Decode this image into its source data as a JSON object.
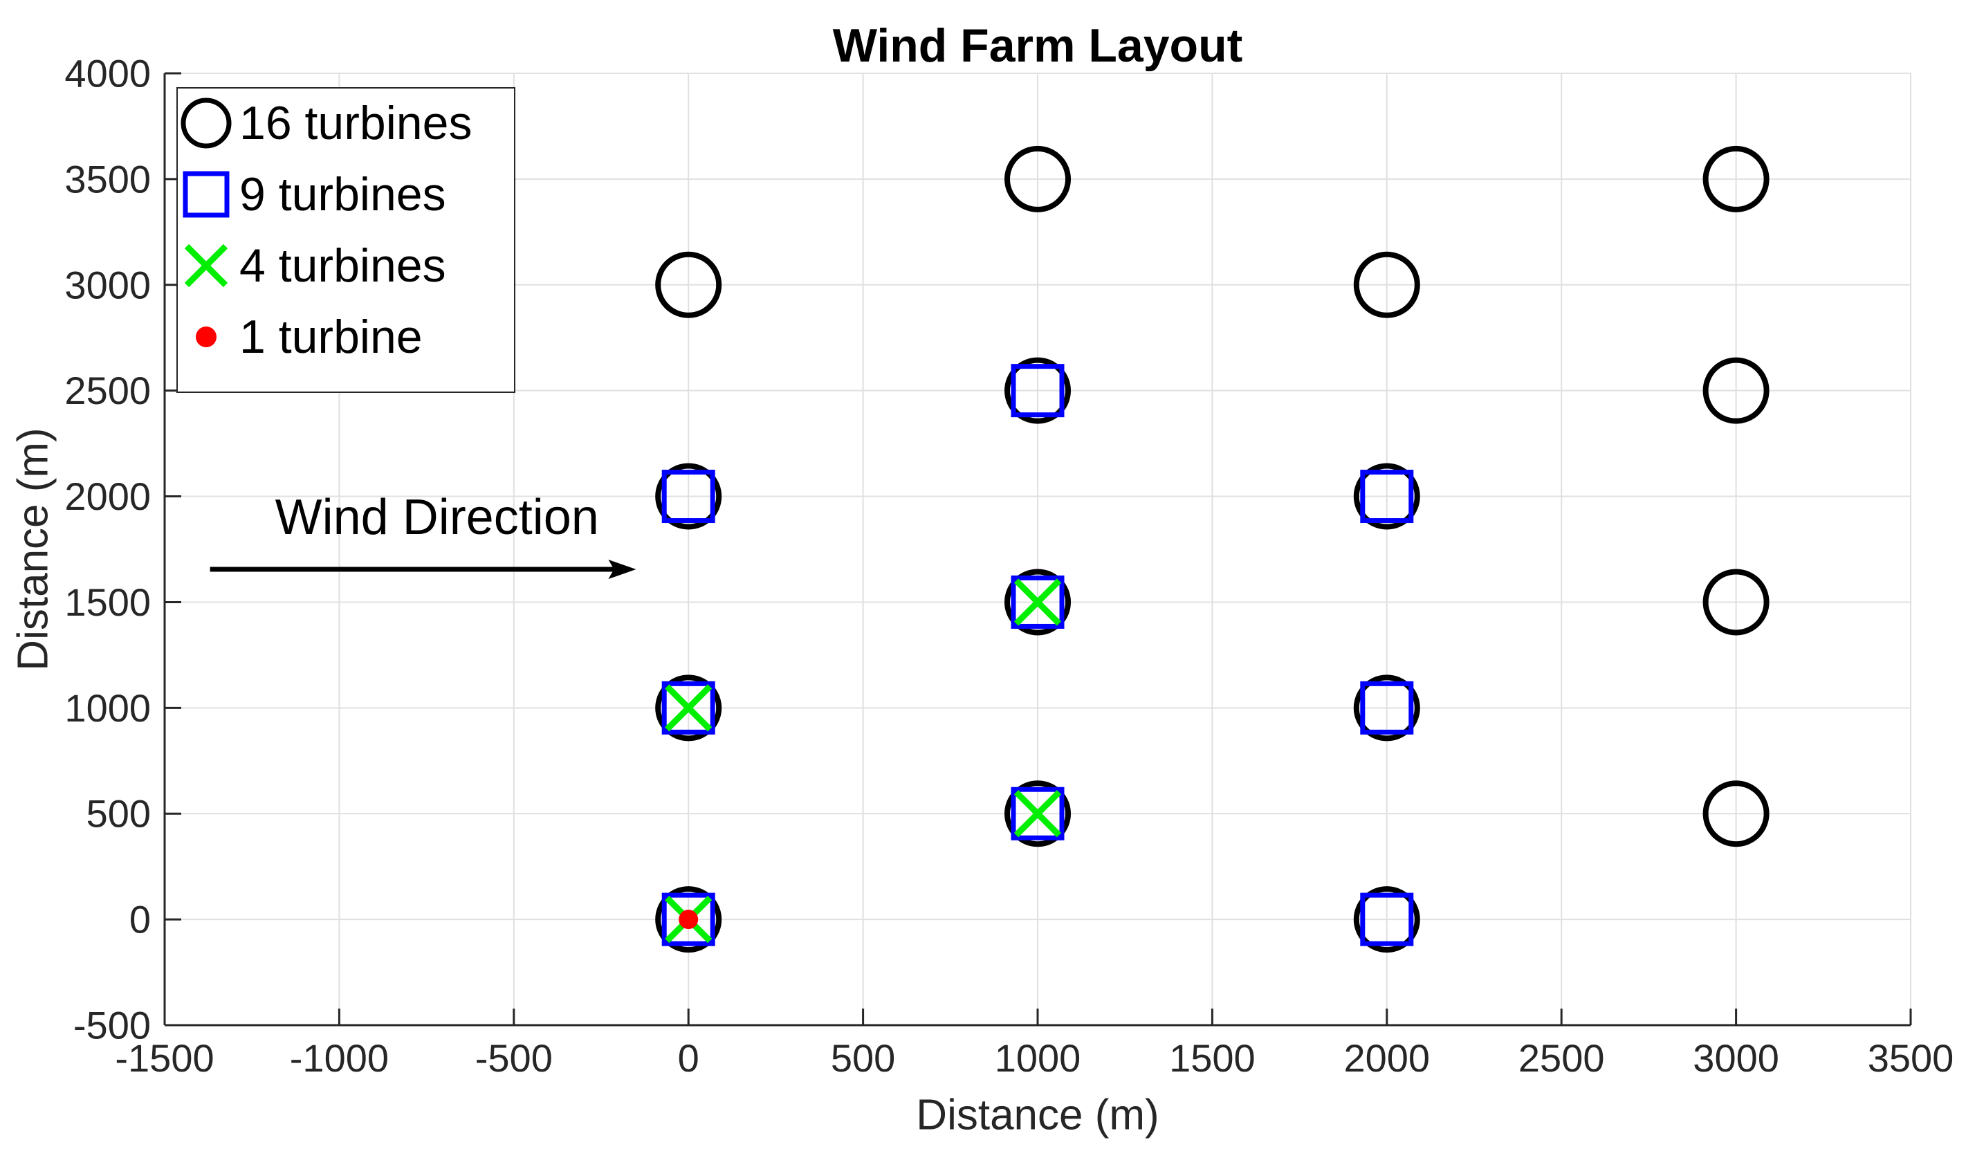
{
  "figure": {
    "background": "#ffffff"
  },
  "chart_data": {
    "type": "scatter",
    "title": "Wind Farm Layout",
    "xlabel": "Distance (m)",
    "ylabel": "Distance (m)",
    "xlim": [
      -1500,
      3500
    ],
    "ylim": [
      -500,
      4000
    ],
    "xticks": [
      -1500,
      -1000,
      -500,
      0,
      500,
      1000,
      1500,
      2000,
      2500,
      3000,
      3500
    ],
    "yticks": [
      -500,
      0,
      500,
      1000,
      1500,
      2000,
      2500,
      3000,
      3500,
      4000
    ],
    "grid": true,
    "legend_position": "top-left",
    "axis_color": "#262626",
    "grid_color": "#e0e0e0",
    "series": [
      {
        "name": "16 turbines",
        "marker": "open-circle",
        "color": "#000000",
        "points": [
          [
            0,
            0
          ],
          [
            0,
            1000
          ],
          [
            0,
            2000
          ],
          [
            0,
            3000
          ],
          [
            1000,
            500
          ],
          [
            1000,
            1500
          ],
          [
            1000,
            2500
          ],
          [
            1000,
            3500
          ],
          [
            2000,
            0
          ],
          [
            2000,
            1000
          ],
          [
            2000,
            2000
          ],
          [
            2000,
            3000
          ],
          [
            3000,
            500
          ],
          [
            3000,
            1500
          ],
          [
            3000,
            2500
          ],
          [
            3000,
            3500
          ]
        ]
      },
      {
        "name": "9 turbines",
        "marker": "open-square",
        "color": "#0000ff",
        "points": [
          [
            0,
            0
          ],
          [
            0,
            1000
          ],
          [
            0,
            2000
          ],
          [
            1000,
            500
          ],
          [
            1000,
            1500
          ],
          [
            1000,
            2500
          ],
          [
            2000,
            0
          ],
          [
            2000,
            1000
          ],
          [
            2000,
            2000
          ]
        ]
      },
      {
        "name": "4 turbines",
        "marker": "x",
        "color": "#00ee00",
        "points": [
          [
            0,
            0
          ],
          [
            0,
            1000
          ],
          [
            1000,
            500
          ],
          [
            1000,
            1500
          ]
        ]
      },
      {
        "name": "1 turbine",
        "marker": "dot",
        "color": "#ff0000",
        "points": [
          [
            0,
            0
          ]
        ]
      }
    ],
    "annotation": {
      "text": "Wind Direction",
      "text_pos": [
        -720,
        1900
      ],
      "arrow": {
        "from": [
          -1370,
          1655
        ],
        "to": [
          -150,
          1655
        ]
      }
    }
  }
}
